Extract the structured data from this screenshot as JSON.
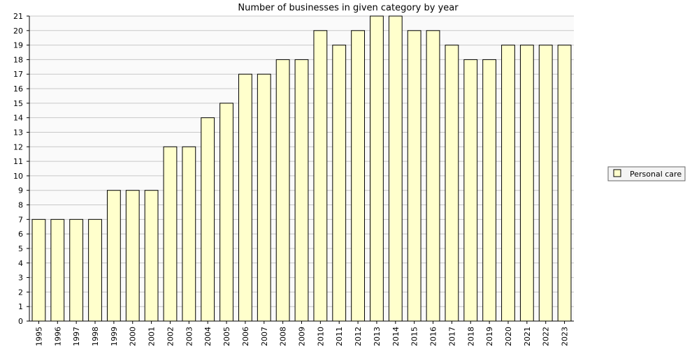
{
  "chart_data": {
    "type": "bar",
    "title": "Number of businesses in given category by year",
    "xlabel": "",
    "ylabel": "",
    "categories": [
      "1995",
      "1996",
      "1997",
      "1998",
      "1999",
      "2000",
      "2001",
      "2002",
      "2003",
      "2004",
      "2005",
      "2006",
      "2007",
      "2008",
      "2009",
      "2010",
      "2011",
      "2012",
      "2013",
      "2014",
      "2015",
      "2016",
      "2017",
      "2018",
      "2019",
      "2020",
      "2021",
      "2022",
      "2023"
    ],
    "series": [
      {
        "name": "Personal care",
        "color": "#ffffcc",
        "values": [
          7,
          7,
          7,
          7,
          9,
          9,
          9,
          12,
          12,
          14,
          15,
          17,
          17,
          18,
          18,
          20,
          19,
          20,
          21,
          21,
          20,
          20,
          19,
          18,
          18,
          19,
          19,
          19,
          19
        ]
      }
    ],
    "ylim": [
      0,
      21
    ],
    "yticks": [
      "0",
      "1",
      "2",
      "3",
      "4",
      "5",
      "6",
      "7",
      "8",
      "9",
      "10",
      "11",
      "12",
      "13",
      "14",
      "15",
      "16",
      "17",
      "18",
      "19",
      "20",
      "21"
    ],
    "grid": true,
    "legend_position": "right",
    "bar_outline_color": "#000000",
    "grid_color": "#c8c8c8",
    "plot_background": "#fafafa"
  }
}
